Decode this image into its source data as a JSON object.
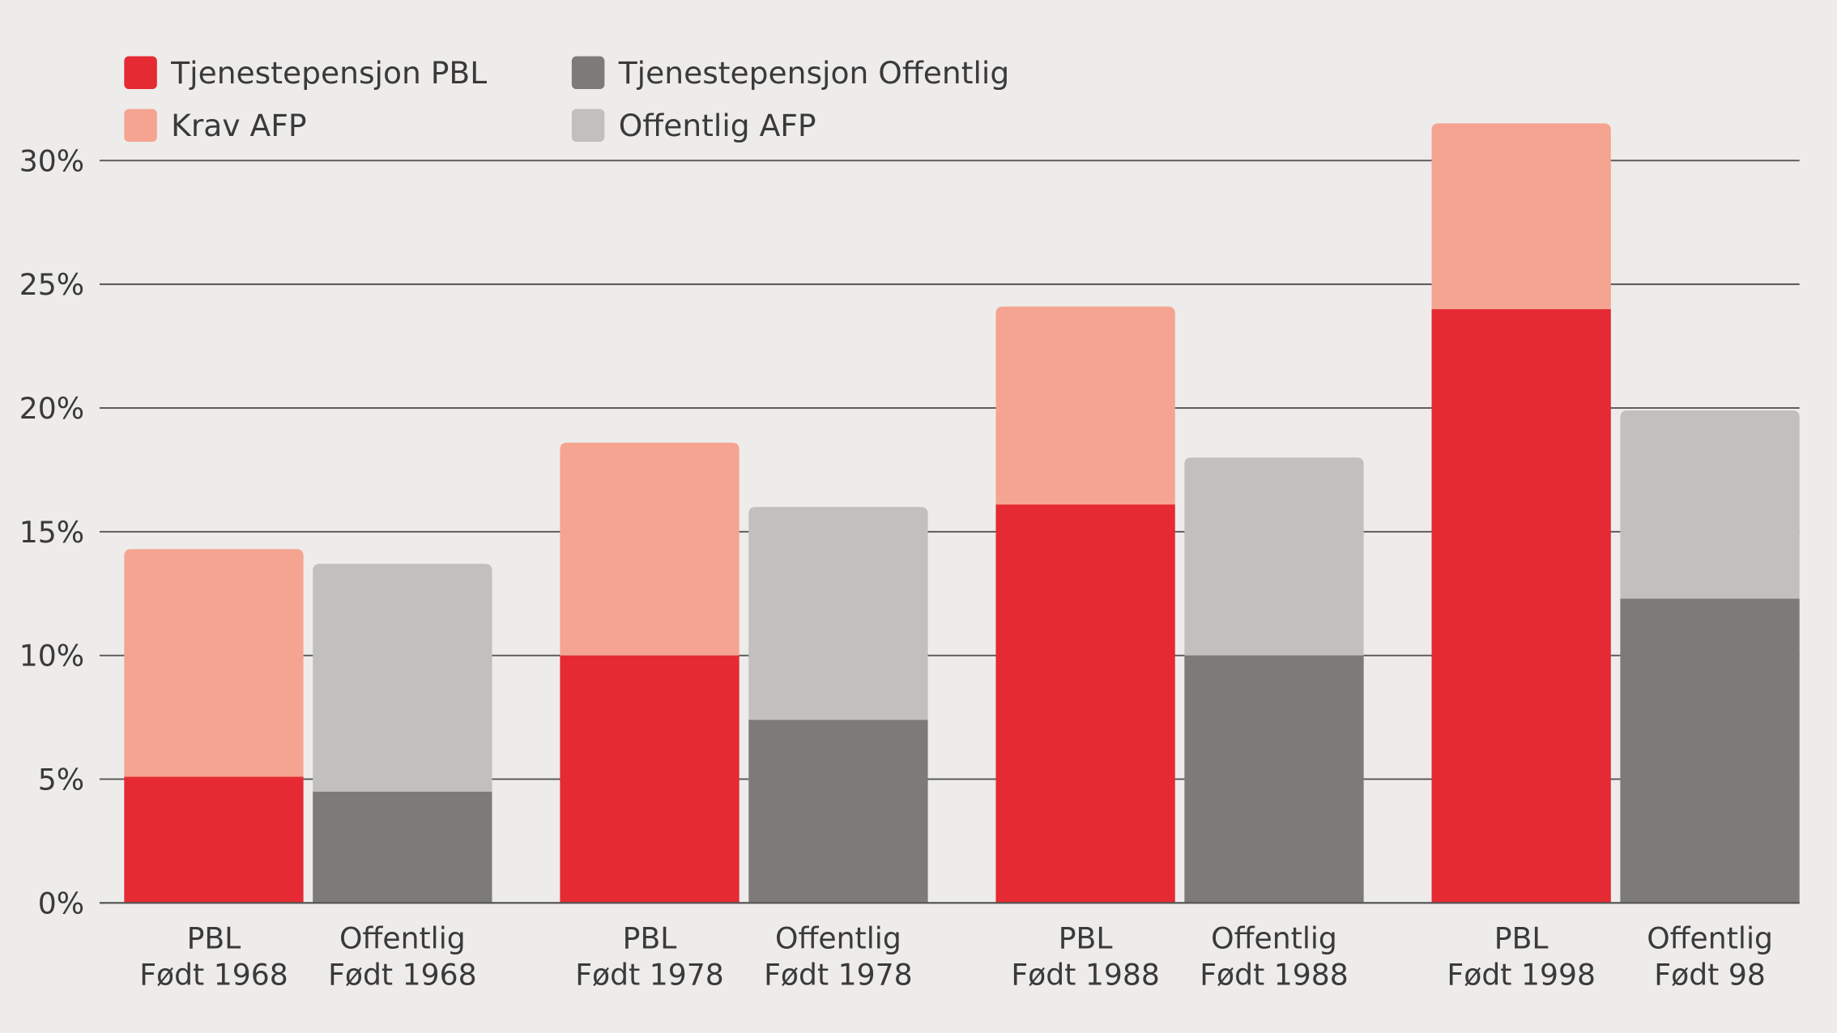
{
  "chart_data": {
    "type": "bar",
    "stacked": true,
    "title": "",
    "xlabel": "",
    "ylabel": "",
    "ylim": [
      0,
      30
    ],
    "yticks": [
      "0%",
      "5%",
      "10%",
      "15%",
      "20%",
      "25%",
      "30%"
    ],
    "ytick_values": [
      0,
      5,
      10,
      15,
      20,
      25,
      30
    ],
    "grid": true,
    "legend_position": "top-left",
    "categories": [
      [
        "PBL",
        "Født 1968"
      ],
      [
        "Offentlig",
        "Født 1968"
      ],
      [
        "PBL",
        "Født 1978"
      ],
      [
        "Offentlig",
        "Født 1978"
      ],
      [
        "PBL",
        "Født 1988"
      ],
      [
        "Offentlig",
        "Født 1988"
      ],
      [
        "PBL",
        "Født 1998"
      ],
      [
        "Offentlig",
        "Født 98"
      ]
    ],
    "series": [
      {
        "name": "Tjenestepensjon PBL",
        "color": "#e52a33",
        "values": [
          5.1,
          null,
          10.0,
          null,
          16.1,
          null,
          24.0,
          null
        ]
      },
      {
        "name": "Krav AFP",
        "color": "#f5a491",
        "values": [
          9.2,
          null,
          8.6,
          null,
          8.0,
          null,
          7.5,
          null
        ]
      },
      {
        "name": "Tjenestepensjon Offentlig",
        "color": "#7c7b79",
        "values": [
          null,
          4.5,
          null,
          7.4,
          null,
          10.0,
          null,
          12.3
        ]
      },
      {
        "name": "Offentlig AFP",
        "color": "#c1c0be",
        "values": [
          null,
          9.2,
          null,
          8.6,
          null,
          8.0,
          null,
          7.6
        ]
      }
    ],
    "legend_order": [
      0,
      2,
      1,
      3
    ]
  }
}
